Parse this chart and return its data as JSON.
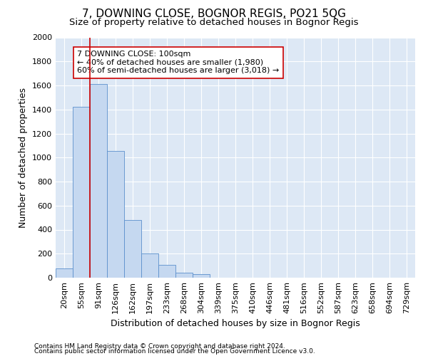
{
  "title": "7, DOWNING CLOSE, BOGNOR REGIS, PO21 5QG",
  "subtitle": "Size of property relative to detached houses in Bognor Regis",
  "xlabel": "Distribution of detached houses by size in Bognor Regis",
  "ylabel": "Number of detached properties",
  "categories": [
    "20sqm",
    "55sqm",
    "91sqm",
    "126sqm",
    "162sqm",
    "197sqm",
    "233sqm",
    "268sqm",
    "304sqm",
    "339sqm",
    "375sqm",
    "410sqm",
    "446sqm",
    "481sqm",
    "516sqm",
    "552sqm",
    "587sqm",
    "623sqm",
    "658sqm",
    "694sqm",
    "729sqm"
  ],
  "bar_heights": [
    80,
    1420,
    1610,
    1055,
    480,
    200,
    105,
    40,
    30,
    0,
    0,
    0,
    0,
    0,
    0,
    0,
    0,
    0,
    0,
    0,
    0
  ],
  "bar_color": "#c5d8f0",
  "bar_edge_color": "#5b8fcc",
  "plot_bg_color": "#dde8f5",
  "fig_bg_color": "#ffffff",
  "grid_color": "#ffffff",
  "vline_color": "#cc0000",
  "vline_x_index": 2,
  "annotation_title": "7 DOWNING CLOSE: 100sqm",
  "annotation_line1": "← 40% of detached houses are smaller (1,980)",
  "annotation_line2": "60% of semi-detached houses are larger (3,018) →",
  "annotation_box_facecolor": "#ffffff",
  "annotation_box_edgecolor": "#cc0000",
  "footer_line1": "Contains HM Land Registry data © Crown copyright and database right 2024.",
  "footer_line2": "Contains public sector information licensed under the Open Government Licence v3.0.",
  "ylim": [
    0,
    2000
  ],
  "yticks": [
    0,
    200,
    400,
    600,
    800,
    1000,
    1200,
    1400,
    1600,
    1800,
    2000
  ],
  "title_fontsize": 11,
  "subtitle_fontsize": 9.5,
  "axis_label_fontsize": 9,
  "tick_fontsize": 8,
  "annotation_fontsize": 8,
  "footer_fontsize": 6.5
}
